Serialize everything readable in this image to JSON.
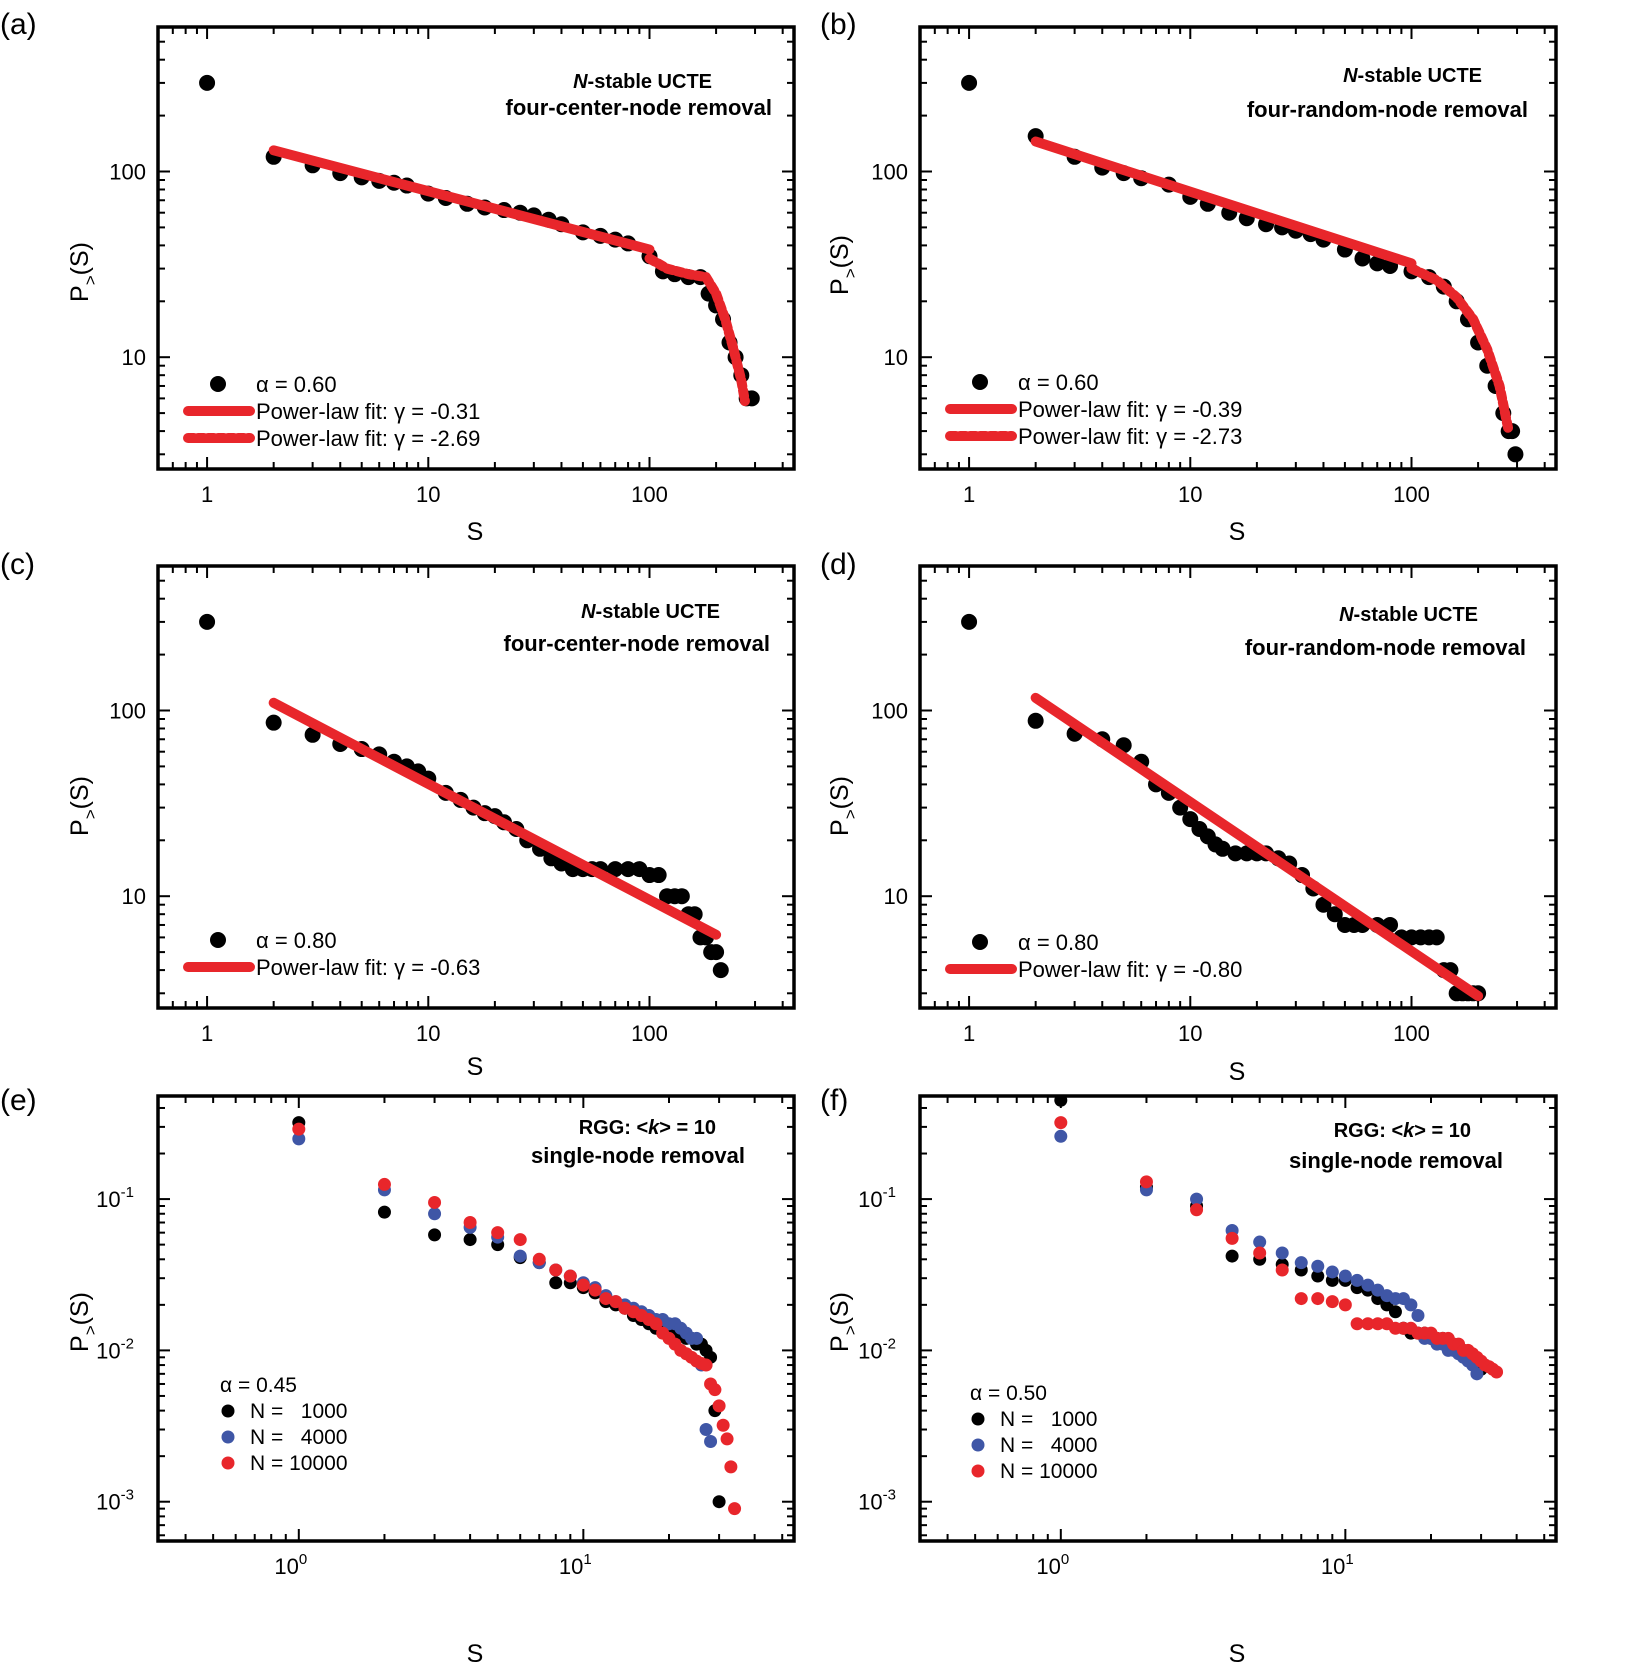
{
  "figure": {
    "x_tick_labels_linear": [
      "1",
      "10",
      "100"
    ],
    "x_tick_labels_exp": [
      "0",
      "1"
    ],
    "y_tick_labels_linear": [
      "10",
      "100"
    ],
    "y_tick_labels_exp": [
      "-1",
      "-2",
      "-3"
    ],
    "tick_base": "10",
    "ylabel_main": "P",
    "ylabel_sub": ">",
    "ylabel_tail": "(S)",
    "xlabel": "S",
    "colors": {
      "black": "#000000",
      "fit": "#e8262b",
      "blue": "#3f56a6",
      "red": "#e8262b"
    }
  },
  "chart_data": [
    {
      "id": "a",
      "panel_label": "(a)",
      "type": "scatter",
      "title_italic": "N",
      "title_rest": "-stable UCTE",
      "subtitle": "four-center-node removal",
      "xlabel": "S",
      "ylabel": "P>(S)",
      "xscale": "log",
      "yscale": "log",
      "xlim": [
        0.6,
        450
      ],
      "ylim": [
        2.5,
        600
      ],
      "legend": {
        "alpha": "α = 0.60",
        "fit_solid": "Power-law fit: γ = -0.31",
        "fit_dotted": "Power-law fit: γ = -2.69"
      },
      "series": [
        {
          "name": "α = 0.60",
          "color": "#000000",
          "x": [
            1,
            2,
            3,
            4,
            5,
            6,
            7,
            8,
            10,
            12,
            15,
            18,
            22,
            26,
            30,
            35,
            40,
            50,
            60,
            70,
            80,
            100,
            115,
            130,
            150,
            170,
            185,
            200,
            215,
            230,
            245,
            260,
            275,
            290
          ],
          "y": [
            300,
            120,
            108,
            98,
            93,
            89,
            87,
            84,
            76,
            72,
            67,
            64,
            62,
            60,
            58,
            55,
            52,
            47,
            45,
            43,
            41,
            35,
            29,
            28,
            27,
            27,
            22,
            19,
            16,
            12,
            10,
            8,
            6,
            6
          ]
        }
      ],
      "fits": [
        {
          "name": "Power-law fit: γ = -0.31",
          "style": "solid",
          "x": [
            2,
            100
          ],
          "y": [
            130,
            38
          ]
        },
        {
          "name": "Power-law fit: γ = -2.69",
          "style": "dotted",
          "x": [
            100,
            120,
            150,
            180,
            200,
            220,
            240,
            260,
            270
          ],
          "y": [
            34,
            30,
            28,
            27,
            22,
            16,
            11,
            7.5,
            5.8
          ]
        }
      ]
    },
    {
      "id": "b",
      "panel_label": "(b)",
      "type": "scatter",
      "title_italic": "N",
      "title_rest": "-stable UCTE",
      "subtitle": "four-random-node removal",
      "xlabel": "S",
      "ylabel": "P>(S)",
      "xscale": "log",
      "yscale": "log",
      "xlim": [
        0.6,
        450
      ],
      "ylim": [
        2.5,
        600
      ],
      "legend": {
        "alpha": "α = 0.60",
        "fit_solid": "Power-law fit: γ = -0.39",
        "fit_dotted": "Power-law fit: γ = -2.73"
      },
      "series": [
        {
          "name": "α = 0.60",
          "color": "#000000",
          "x": [
            1,
            2,
            3,
            4,
            5,
            6,
            8,
            10,
            12,
            15,
            18,
            22,
            26,
            30,
            35,
            40,
            50,
            60,
            70,
            80,
            100,
            120,
            140,
            160,
            180,
            200,
            220,
            240,
            260,
            275,
            285,
            295
          ],
          "y": [
            300,
            155,
            120,
            105,
            98,
            92,
            85,
            73,
            67,
            60,
            56,
            52,
            50,
            48,
            46,
            43,
            38,
            34,
            32,
            31,
            29,
            27,
            24,
            20,
            16,
            12,
            9,
            7,
            5,
            4,
            4,
            3
          ]
        }
      ],
      "fits": [
        {
          "name": "Power-law fit: γ = -0.39",
          "style": "solid",
          "x": [
            2,
            100
          ],
          "y": [
            145,
            32
          ]
        },
        {
          "name": "Power-law fit: γ = -2.73",
          "style": "dotted",
          "x": [
            100,
            130,
            160,
            190,
            220,
            250,
            275
          ],
          "y": [
            30,
            26,
            21,
            16,
            11,
            7,
            4
          ]
        }
      ]
    },
    {
      "id": "c",
      "panel_label": "(c)",
      "type": "scatter",
      "title_italic": "N",
      "title_rest": "-stable UCTE",
      "subtitle": "four-center-node removal",
      "xlabel": "S",
      "ylabel": "P>(S)",
      "xscale": "log",
      "yscale": "log",
      "xlim": [
        0.6,
        450
      ],
      "ylim": [
        2.5,
        600
      ],
      "legend": {
        "alpha": "α = 0.80",
        "fit_solid": "Power-law fit: γ = -0.63"
      },
      "series": [
        {
          "name": "α = 0.80",
          "color": "#000000",
          "x": [
            1,
            2,
            3,
            4,
            5,
            6,
            7,
            8,
            9,
            10,
            12,
            14,
            16,
            18,
            20,
            22,
            25,
            28,
            32,
            36,
            40,
            45,
            50,
            55,
            60,
            70,
            80,
            90,
            100,
            110,
            120,
            130,
            140,
            150,
            160,
            170,
            180,
            190,
            200,
            210
          ],
          "y": [
            300,
            86,
            74,
            66,
            62,
            58,
            53,
            50,
            47,
            43,
            36,
            33,
            30,
            28,
            27,
            25,
            23,
            20,
            18,
            16,
            15,
            14,
            14,
            14,
            14,
            14,
            14,
            14,
            13,
            13,
            10,
            10,
            10,
            8,
            8,
            6,
            6,
            5,
            5,
            4
          ]
        }
      ],
      "fits": [
        {
          "name": "Power-law fit: γ = -0.63",
          "style": "solid",
          "x": [
            2,
            200
          ],
          "y": [
            110,
            6.2
          ]
        }
      ]
    },
    {
      "id": "d",
      "panel_label": "(d)",
      "type": "scatter",
      "title_italic": "N",
      "title_rest": "-stable UCTE",
      "subtitle": "four-random-node removal",
      "xlabel": "S",
      "ylabel": "P>(S)",
      "xscale": "log",
      "yscale": "log",
      "xlim": [
        0.6,
        450
      ],
      "ylim": [
        2.5,
        600
      ],
      "legend": {
        "alpha": "α = 0.80",
        "fit_solid": "Power-law fit: γ = -0.80"
      },
      "series": [
        {
          "name": "α = 0.80",
          "color": "#000000",
          "x": [
            1,
            2,
            3,
            4,
            5,
            6,
            7,
            8,
            9,
            10,
            11,
            12,
            13,
            14,
            16,
            18,
            20,
            22,
            25,
            28,
            32,
            36,
            40,
            45,
            50,
            55,
            60,
            70,
            80,
            90,
            100,
            110,
            120,
            130,
            140,
            150,
            160,
            170,
            180,
            190,
            200
          ],
          "y": [
            300,
            88,
            75,
            70,
            65,
            53,
            40,
            36,
            30,
            26,
            23,
            21,
            19,
            18,
            17,
            17,
            17,
            17,
            16,
            15,
            13,
            11,
            9,
            8,
            7,
            7,
            7,
            7,
            7,
            6,
            6,
            6,
            6,
            6,
            4,
            4,
            3,
            3,
            3,
            3,
            3
          ]
        }
      ],
      "fits": [
        {
          "name": "Power-law fit: γ = -0.80",
          "style": "solid",
          "x": [
            2,
            200
          ],
          "y": [
            117,
            2.9
          ]
        }
      ]
    },
    {
      "id": "e",
      "panel_label": "(e)",
      "type": "scatter",
      "title_rest": "RGG: <",
      "title_italic": "k",
      "title_end": "> = 10",
      "subtitle": "single-node removal",
      "xlabel": "S",
      "ylabel": "P>(S)",
      "xscale": "log",
      "yscale": "log",
      "xlim": [
        0.32,
        55
      ],
      "ylim": [
        0.00055,
        0.48
      ],
      "legend": {
        "alpha": "α = 0.45",
        "entries": [
          "N =   1000",
          "N =   4000",
          "N = 10000"
        ]
      },
      "series": [
        {
          "name": "N = 1000",
          "color": "#000000",
          "x": [
            1,
            2,
            3,
            4,
            5,
            6,
            7,
            8,
            9,
            10,
            11,
            12,
            13,
            14,
            15,
            16,
            17,
            18,
            19,
            20,
            21,
            22,
            23,
            24,
            25,
            26,
            27,
            28,
            29,
            30
          ],
          "y": [
            0.32,
            0.082,
            0.058,
            0.054,
            0.05,
            0.041,
            0.038,
            0.028,
            0.028,
            0.026,
            0.024,
            0.021,
            0.02,
            0.019,
            0.017,
            0.016,
            0.015,
            0.014,
            0.014,
            0.013,
            0.013,
            0.013,
            0.012,
            0.012,
            0.011,
            0.011,
            0.01,
            0.009,
            0.004,
            0.001
          ]
        },
        {
          "name": "N = 4000",
          "color": "#3f56a6",
          "x": [
            1,
            2,
            3,
            4,
            5,
            6,
            7,
            8,
            9,
            10,
            11,
            12,
            13,
            14,
            15,
            16,
            17,
            18,
            19,
            20,
            21,
            22,
            23,
            24,
            25,
            26,
            27,
            28
          ],
          "y": [
            0.25,
            0.115,
            0.08,
            0.065,
            0.056,
            0.042,
            0.038,
            0.034,
            0.031,
            0.028,
            0.026,
            0.023,
            0.021,
            0.02,
            0.019,
            0.018,
            0.017,
            0.016,
            0.016,
            0.015,
            0.015,
            0.014,
            0.013,
            0.012,
            0.012,
            0.008,
            0.003,
            0.0025
          ]
        },
        {
          "name": "N = 10000",
          "color": "#e8262b",
          "x": [
            1,
            2,
            3,
            4,
            5,
            6,
            7,
            8,
            9,
            10,
            11,
            12,
            13,
            14,
            15,
            16,
            17,
            18,
            19,
            20,
            21,
            22,
            23,
            24,
            25,
            26,
            27,
            28,
            29,
            30,
            31,
            32,
            33,
            34
          ],
          "y": [
            0.29,
            0.125,
            0.095,
            0.07,
            0.06,
            0.054,
            0.04,
            0.034,
            0.031,
            0.027,
            0.025,
            0.022,
            0.021,
            0.019,
            0.018,
            0.017,
            0.016,
            0.015,
            0.013,
            0.012,
            0.011,
            0.01,
            0.0095,
            0.009,
            0.0085,
            0.0082,
            0.008,
            0.006,
            0.0055,
            0.0043,
            0.0032,
            0.0026,
            0.0017,
            0.0009
          ]
        }
      ]
    },
    {
      "id": "f",
      "panel_label": "(f)",
      "type": "scatter",
      "title_rest": "RGG: <",
      "title_italic": "k",
      "title_end": "> = 10",
      "subtitle": "single-node removal",
      "xlabel": "S",
      "ylabel": "P>(S)",
      "xscale": "log",
      "yscale": "log",
      "xlim": [
        0.32,
        55
      ],
      "ylim": [
        0.00055,
        0.48
      ],
      "legend": {
        "alpha": "α = 0.50",
        "entries": [
          "N =   1000",
          "N =   4000",
          "N = 10000"
        ]
      },
      "series": [
        {
          "name": "N = 1000",
          "color": "#000000",
          "x": [
            1,
            2,
            3,
            4,
            5,
            6,
            7,
            8,
            9,
            10,
            11,
            12,
            13,
            14,
            15,
            16,
            17,
            18,
            19,
            20,
            21,
            22,
            23,
            24,
            25,
            26,
            27,
            28,
            29,
            30
          ],
          "y": [
            0.45,
            0.12,
            0.09,
            0.042,
            0.04,
            0.037,
            0.034,
            0.031,
            0.029,
            0.029,
            0.026,
            0.025,
            0.022,
            0.02,
            0.018,
            0.014,
            0.013,
            0.013,
            0.013,
            0.012,
            0.012,
            0.012,
            0.011,
            0.011,
            0.01,
            0.01,
            0.0095,
            0.009,
            0.0085,
            0.0075
          ]
        },
        {
          "name": "N = 4000",
          "color": "#3f56a6",
          "x": [
            1,
            2,
            3,
            4,
            5,
            6,
            7,
            8,
            9,
            10,
            11,
            12,
            13,
            14,
            15,
            16,
            17,
            18,
            19,
            20,
            21,
            22,
            23,
            24,
            25,
            26,
            27,
            28,
            29
          ],
          "y": [
            0.26,
            0.115,
            0.1,
            0.062,
            0.052,
            0.044,
            0.038,
            0.036,
            0.033,
            0.031,
            0.029,
            0.027,
            0.025,
            0.023,
            0.022,
            0.022,
            0.02,
            0.017,
            0.012,
            0.012,
            0.011,
            0.011,
            0.01,
            0.01,
            0.0095,
            0.009,
            0.0085,
            0.008,
            0.007
          ]
        },
        {
          "name": "N = 10000",
          "color": "#e8262b",
          "x": [
            1,
            2,
            3,
            4,
            5,
            6,
            7,
            8,
            9,
            10,
            11,
            12,
            13,
            14,
            15,
            16,
            17,
            18,
            19,
            20,
            21,
            22,
            23,
            24,
            25,
            26,
            27,
            28,
            29,
            30,
            31,
            32,
            33,
            34
          ],
          "y": [
            0.32,
            0.13,
            0.085,
            0.055,
            0.044,
            0.034,
            0.022,
            0.022,
            0.021,
            0.02,
            0.015,
            0.015,
            0.015,
            0.015,
            0.014,
            0.014,
            0.014,
            0.013,
            0.013,
            0.013,
            0.012,
            0.012,
            0.012,
            0.011,
            0.011,
            0.01,
            0.01,
            0.0095,
            0.009,
            0.0085,
            0.008,
            0.0078,
            0.0075,
            0.0072
          ]
        }
      ]
    }
  ]
}
